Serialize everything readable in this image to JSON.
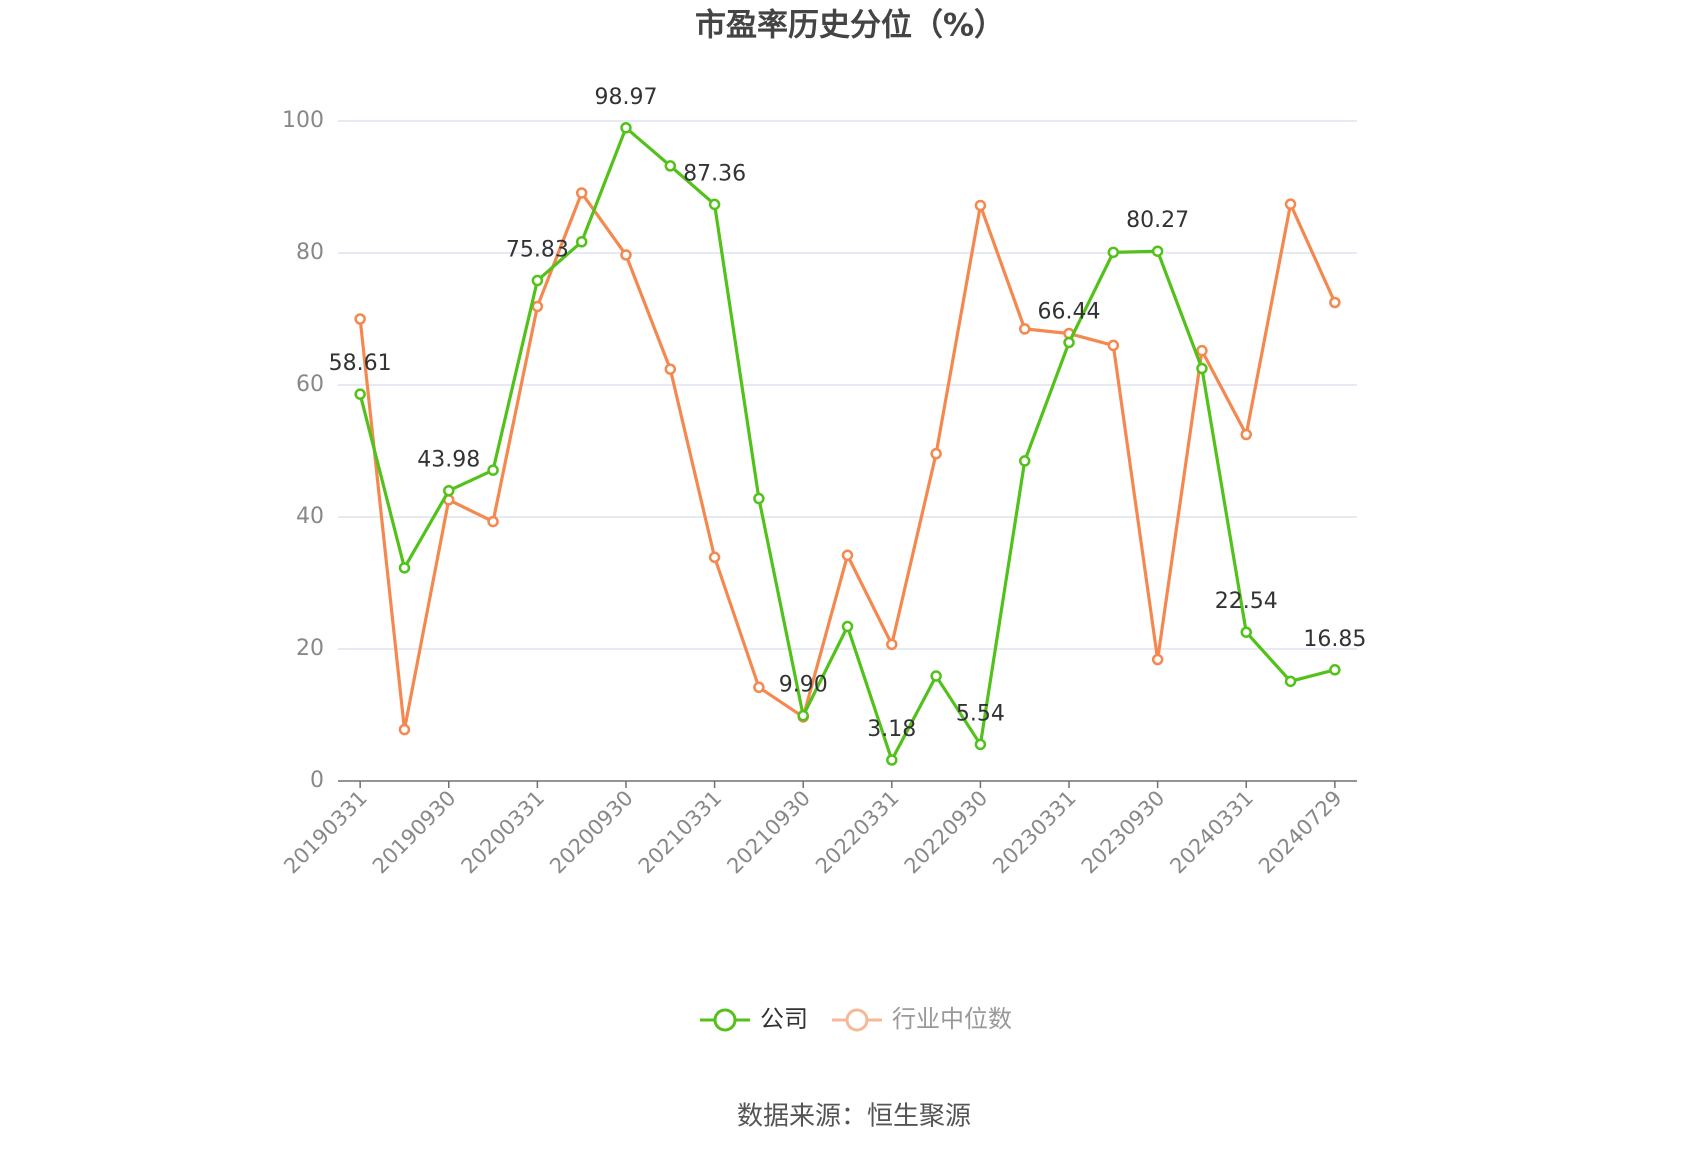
{
  "chart_data": {
    "type": "line",
    "title": "市盈率历史分位（%）",
    "categories": [
      "20190331",
      null,
      "20190930",
      null,
      "20200331",
      null,
      "20200930",
      null,
      "20210331",
      null,
      "20210930",
      null,
      "20220331",
      null,
      "20220930",
      null,
      "20230331",
      null,
      "20230930",
      null,
      "20240331",
      null,
      "20240729"
    ],
    "series": [
      {
        "name": "公司",
        "color": "#52c21a",
        "values": [
          58.61,
          32.3,
          43.98,
          47.1,
          75.83,
          81.7,
          98.97,
          93.2,
          87.36,
          42.8,
          9.9,
          23.4,
          3.18,
          15.9,
          5.54,
          48.5,
          66.44,
          80.1,
          80.27,
          62.5,
          22.54,
          15.1,
          16.85
        ],
        "value_labels": [
          "58.61",
          null,
          "43.98",
          null,
          "75.83",
          null,
          "98.97",
          null,
          "87.36",
          null,
          "9.90",
          null,
          "3.18",
          null,
          "5.54",
          null,
          "66.44",
          null,
          "80.27",
          null,
          "22.54",
          null,
          "16.85"
        ]
      },
      {
        "name": "行业中位数",
        "color": "#f4884f",
        "values": [
          70.0,
          7.8,
          42.6,
          39.3,
          71.9,
          89.1,
          79.7,
          62.4,
          33.9,
          14.2,
          9.7,
          34.2,
          20.7,
          49.6,
          87.2,
          68.5,
          67.8,
          66.0,
          18.4,
          65.2,
          52.5,
          87.4,
          72.5
        ]
      }
    ],
    "ylim": [
      0,
      100
    ],
    "yticks": [
      0,
      20,
      40,
      60,
      80,
      100
    ],
    "grid": true,
    "legend": "bottom",
    "source": "数据来源：恒生聚源"
  }
}
